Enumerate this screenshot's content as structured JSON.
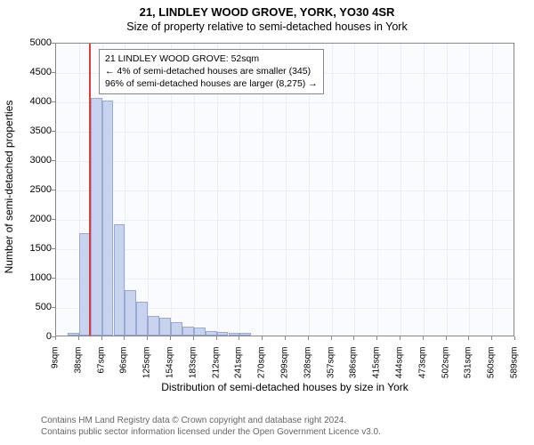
{
  "titles": {
    "line1": "21, LINDLEY WOOD GROVE, YORK, YO30 4SR",
    "line2": "Size of property relative to semi-detached houses in York"
  },
  "axes": {
    "ylabel": "Number of semi-detached properties",
    "xlabel": "Distribution of semi-detached houses by size in York",
    "ylim": [
      0,
      5000
    ],
    "ytick_step": 500,
    "xtick_start": 9,
    "xtick_step": 29,
    "xtick_count": 21,
    "xtick_unit": "sqm",
    "label_fontsize": 12,
    "tick_fontsize": 11
  },
  "chart": {
    "type": "histogram",
    "background_color": "#fafbff",
    "grid_color": "#eceef5",
    "border_color": "#888888",
    "bar_fill": "#c7d3ef",
    "bar_stroke": "#9aa9d0",
    "bar_x_start": 9,
    "bar_width_data": 14.5,
    "values": [
      0,
      40,
      1750,
      4050,
      4000,
      1900,
      780,
      580,
      340,
      300,
      230,
      150,
      130,
      80,
      60,
      40,
      40,
      0,
      0,
      0,
      0,
      0,
      0,
      0,
      0,
      0,
      0,
      0,
      0,
      0,
      0,
      0,
      0,
      0,
      0,
      0,
      0,
      0,
      0,
      0
    ],
    "marker": {
      "x": 52,
      "color": "#e23b3b"
    }
  },
  "annotation": {
    "lines": [
      "21 LINDLEY WOOD GROVE: 52sqm",
      "← 4% of semi-detached houses are smaller (345)",
      "96% of semi-detached houses are larger (8,275) →"
    ],
    "border_color": "#888888"
  },
  "footer": {
    "line1": "Contains HM Land Registry data © Crown copyright and database right 2024.",
    "line2": "Contains public sector information licensed under the Open Government Licence v3.0."
  }
}
